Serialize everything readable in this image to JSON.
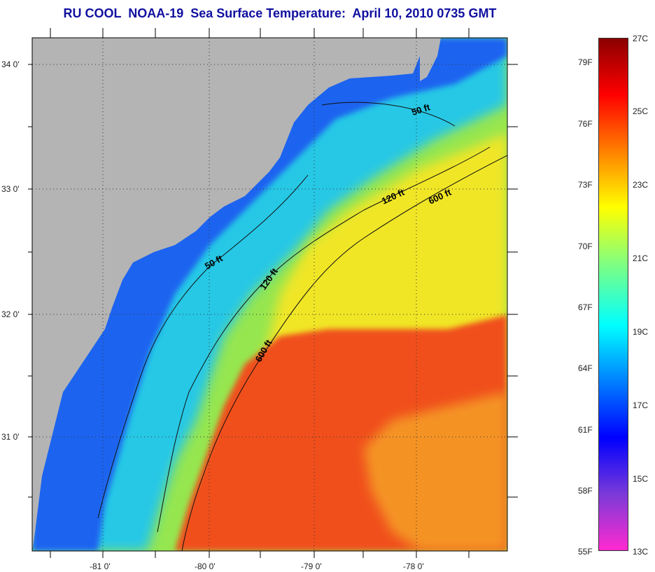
{
  "title": "RU COOL  NOAA-19  Sea Surface Temperature:  April 10, 2010 0735 GMT",
  "map": {
    "lat_labels": [
      "34 0'",
      "33 0'",
      "32 0'",
      "31 0'"
    ],
    "lon_labels": [
      "-81 0'",
      "-80 0'",
      "-79 0'",
      "-78 0'"
    ],
    "isobaths": [
      {
        "label": "50 ft"
      },
      {
        "label": "50 ft"
      },
      {
        "label": "120 ft"
      },
      {
        "label": "120 ft"
      },
      {
        "label": "600 ft"
      },
      {
        "label": "600 ft"
      }
    ],
    "colors": {
      "land": "#b4b4b4",
      "cold_coastal": "#1e64f0",
      "mid_shelf": "#28c8e6",
      "outer_shelf": "#96e650",
      "slope": "#f0e628",
      "gulf_stream": "#f0501e"
    }
  },
  "colorbar": {
    "fahrenheit_labels": [
      "79F",
      "76F",
      "73F",
      "70F",
      "67F",
      "64F",
      "61F",
      "58F",
      "55F"
    ],
    "celsius_labels": [
      "27C",
      "25C",
      "23C",
      "21C",
      "19C",
      "17C",
      "15C",
      "13C"
    ],
    "colors": [
      "#ff2ad0",
      "#7a3ad8",
      "#0000ff",
      "#0080ff",
      "#00ffff",
      "#80ff80",
      "#ffff00",
      "#ff8000",
      "#ff0000",
      "#8b0000"
    ]
  }
}
